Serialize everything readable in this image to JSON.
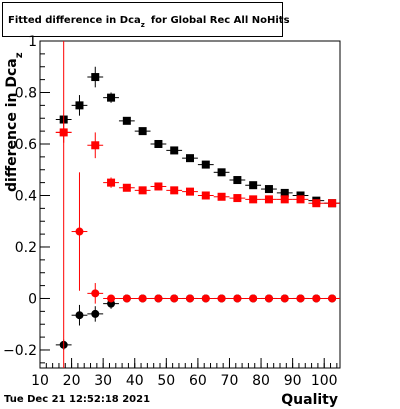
{
  "chart_data": {
    "type": "scatter",
    "title_main": "Fitted difference in Dca",
    "title_sub": "z",
    "title_rest": "for Global Rec All NoHits",
    "xlabel": "Quality",
    "ylabel_main": "difference in Dca",
    "ylabel_sub": "z",
    "xlim": [
      10,
      105
    ],
    "ylim": [
      -0.27,
      1.0
    ],
    "x_ticks": [
      10,
      20,
      30,
      40,
      50,
      60,
      70,
      80,
      90,
      100
    ],
    "y_ticks": [
      -0.2,
      0,
      0.2,
      0.4,
      0.6,
      0.8,
      1
    ],
    "y_tick_labels": [
      "−0.2",
      "0",
      "0.2",
      "0.4",
      "0.6",
      "0.8",
      "1"
    ],
    "series": [
      {
        "color": "#000000",
        "marker": "square",
        "points": [
          {
            "x": 17.5,
            "y": 0.695,
            "err": 0.0
          },
          {
            "x": 22.5,
            "y": 0.75,
            "err": 0.04
          },
          {
            "x": 27.5,
            "y": 0.86,
            "err": 0.04
          },
          {
            "x": 32.5,
            "y": 0.78,
            "err": 0.02
          },
          {
            "x": 37.5,
            "y": 0.69,
            "err": 0.01
          },
          {
            "x": 42.5,
            "y": 0.65,
            "err": 0.01
          },
          {
            "x": 47.5,
            "y": 0.6,
            "err": 0.01
          },
          {
            "x": 52.5,
            "y": 0.575,
            "err": 0.01
          },
          {
            "x": 57.5,
            "y": 0.545,
            "err": 0.01
          },
          {
            "x": 62.5,
            "y": 0.52,
            "err": 0.01
          },
          {
            "x": 67.5,
            "y": 0.49,
            "err": 0.01
          },
          {
            "x": 72.5,
            "y": 0.46,
            "err": 0.01
          },
          {
            "x": 77.5,
            "y": 0.44,
            "err": 0.01
          },
          {
            "x": 82.5,
            "y": 0.425,
            "err": 0.01
          },
          {
            "x": 87.5,
            "y": 0.41,
            "err": 0.01
          },
          {
            "x": 92.5,
            "y": 0.4,
            "err": 0.01
          },
          {
            "x": 97.5,
            "y": 0.38,
            "err": 0.01
          },
          {
            "x": 102.5,
            "y": 0.37,
            "err": 0.01
          }
        ]
      },
      {
        "color": "#ff0000",
        "marker": "square",
        "points": [
          {
            "x": 17.5,
            "y": 0.645,
            "err": 0.04
          },
          {
            "x": 27.5,
            "y": 0.595,
            "err": 0.05
          },
          {
            "x": 32.5,
            "y": 0.45,
            "err": 0.02
          },
          {
            "x": 37.5,
            "y": 0.43,
            "err": 0.01
          },
          {
            "x": 42.5,
            "y": 0.42,
            "err": 0.01
          },
          {
            "x": 47.5,
            "y": 0.435,
            "err": 0.01
          },
          {
            "x": 52.5,
            "y": 0.42,
            "err": 0.01
          },
          {
            "x": 57.5,
            "y": 0.415,
            "err": 0.01
          },
          {
            "x": 62.5,
            "y": 0.4,
            "err": 0.01
          },
          {
            "x": 67.5,
            "y": 0.395,
            "err": 0.01
          },
          {
            "x": 72.5,
            "y": 0.39,
            "err": 0.01
          },
          {
            "x": 77.5,
            "y": 0.385,
            "err": 0.01
          },
          {
            "x": 82.5,
            "y": 0.385,
            "err": 0.01
          },
          {
            "x": 87.5,
            "y": 0.385,
            "err": 0.01
          },
          {
            "x": 92.5,
            "y": 0.385,
            "err": 0.01
          },
          {
            "x": 97.5,
            "y": 0.37,
            "err": 0.01
          },
          {
            "x": 102.5,
            "y": 0.37,
            "err": 0.01
          }
        ]
      },
      {
        "color": "#000000",
        "marker": "circle",
        "points": [
          {
            "x": 17.5,
            "y": -0.18,
            "err": 0.02
          },
          {
            "x": 22.5,
            "y": -0.065,
            "err": 0.04
          },
          {
            "x": 27.5,
            "y": -0.06,
            "err": 0.03
          },
          {
            "x": 32.5,
            "y": -0.02,
            "err": 0.02
          },
          {
            "x": 37.5,
            "y": 0.0,
            "err": 0.01
          },
          {
            "x": 42.5,
            "y": 0.0,
            "err": 0.01
          },
          {
            "x": 47.5,
            "y": 0.0,
            "err": 0.01
          },
          {
            "x": 52.5,
            "y": 0.0,
            "err": 0.01
          },
          {
            "x": 57.5,
            "y": 0.0,
            "err": 0.01
          },
          {
            "x": 62.5,
            "y": 0.0,
            "err": 0.01
          },
          {
            "x": 67.5,
            "y": 0.0,
            "err": 0.01
          },
          {
            "x": 72.5,
            "y": 0.0,
            "err": 0.01
          },
          {
            "x": 77.5,
            "y": 0.0,
            "err": 0.01
          },
          {
            "x": 82.5,
            "y": 0.0,
            "err": 0.01
          },
          {
            "x": 87.5,
            "y": 0.0,
            "err": 0.01
          },
          {
            "x": 92.5,
            "y": 0.0,
            "err": 0.01
          },
          {
            "x": 97.5,
            "y": 0.0,
            "err": 0.01
          },
          {
            "x": 102.5,
            "y": 0.0,
            "err": 0.01
          }
        ]
      },
      {
        "color": "#ff0000",
        "marker": "circle",
        "points": [
          {
            "x": 17.5,
            "y": 0.645,
            "err": 1.0
          },
          {
            "x": 22.5,
            "y": 0.26,
            "err": 0.23
          },
          {
            "x": 27.5,
            "y": 0.02,
            "err": 0.04
          },
          {
            "x": 32.5,
            "y": 0.0,
            "err": 0.01
          },
          {
            "x": 37.5,
            "y": 0.0,
            "err": 0.01
          },
          {
            "x": 42.5,
            "y": 0.0,
            "err": 0.01
          },
          {
            "x": 47.5,
            "y": 0.0,
            "err": 0.01
          },
          {
            "x": 52.5,
            "y": 0.0,
            "err": 0.01
          },
          {
            "x": 57.5,
            "y": 0.0,
            "err": 0.01
          },
          {
            "x": 62.5,
            "y": 0.0,
            "err": 0.01
          },
          {
            "x": 67.5,
            "y": 0.0,
            "err": 0.01
          },
          {
            "x": 72.5,
            "y": 0.0,
            "err": 0.01
          },
          {
            "x": 77.5,
            "y": 0.0,
            "err": 0.01
          },
          {
            "x": 82.5,
            "y": 0.0,
            "err": 0.01
          },
          {
            "x": 87.5,
            "y": 0.0,
            "err": 0.01
          },
          {
            "x": 92.5,
            "y": 0.0,
            "err": 0.01
          },
          {
            "x": 97.5,
            "y": 0.0,
            "err": 0.01
          },
          {
            "x": 102.5,
            "y": 0.0,
            "err": 0.01
          }
        ]
      }
    ]
  },
  "footer": {
    "timestamp": "Tue Dec 21 12:52:18 2021"
  }
}
